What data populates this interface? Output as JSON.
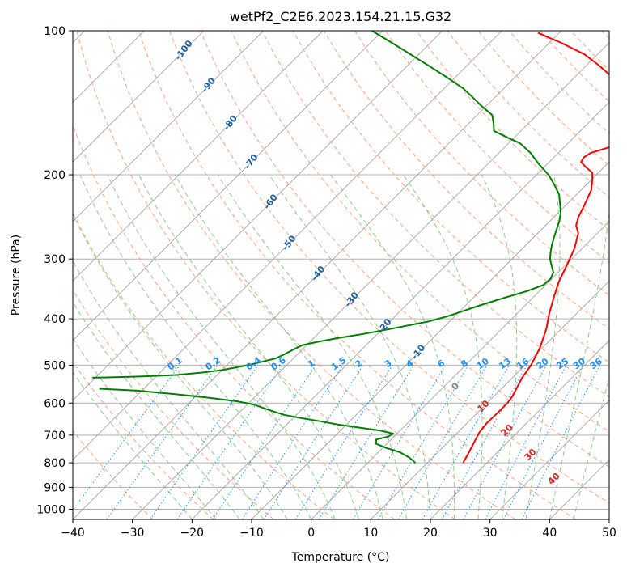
{
  "chart_data": {
    "type": "line",
    "title": "wetPf2_C2E6.2023.154.21.15.G32",
    "xlabel": "Temperature (°C)",
    "ylabel": "Pressure (hPa)",
    "x_ticks": [
      -40,
      -30,
      -20,
      -10,
      0,
      10,
      20,
      30,
      40,
      50
    ],
    "y_ticks": [
      100,
      200,
      300,
      400,
      500,
      600,
      700,
      800,
      900,
      1000
    ],
    "xlim": [
      -40,
      50
    ],
    "ylim": [
      1050,
      100
    ],
    "y_scale": "log",
    "skew": true,
    "grid": true,
    "series": [
      {
        "color": "#ff0000",
        "points": [
          [
            16,
            800
          ],
          [
            15.2,
            760
          ],
          [
            14.3,
            720
          ],
          [
            13.6,
            690
          ],
          [
            13.3,
            660
          ],
          [
            13.4,
            630
          ],
          [
            13.4,
            600
          ],
          [
            13.1,
            580
          ],
          [
            12.2,
            550
          ],
          [
            11.6,
            530
          ],
          [
            11.0,
            500
          ],
          [
            9.6,
            460
          ],
          [
            7.5,
            420
          ],
          [
            5.4,
            390
          ],
          [
            3.4,
            360
          ],
          [
            1.7,
            335
          ],
          [
            0.3,
            310
          ],
          [
            -1.3,
            285
          ],
          [
            -3.2,
            265
          ],
          [
            -4.9,
            255
          ],
          [
            -5.9,
            245
          ],
          [
            -7.0,
            230
          ],
          [
            -8.3,
            215
          ],
          [
            -9.8,
            205
          ],
          [
            -11.0,
            198
          ],
          [
            -13.3,
            192
          ],
          [
            -14.7,
            188
          ],
          [
            -15.0,
            184
          ],
          [
            -14.6,
            180
          ],
          [
            -11.9,
            174
          ],
          [
            -11.1,
            169
          ],
          [
            -12.2,
            163
          ],
          [
            -13.4,
            157
          ],
          [
            -14.8,
            151
          ],
          [
            -15.6,
            146
          ],
          [
            -16.6,
            140
          ],
          [
            -18.5,
            134
          ],
          [
            -21.4,
            129
          ],
          [
            -24.3,
            124
          ],
          [
            -28.0,
            118
          ],
          [
            -32.2,
            112
          ],
          [
            -38.0,
            106
          ],
          [
            -43.6,
            101
          ]
        ]
      },
      {
        "color": "#008000",
        "points": [
          [
            8,
            800
          ],
          [
            6.1,
            780
          ],
          [
            3.6,
            760
          ],
          [
            0.7,
            745
          ],
          [
            -1.8,
            730
          ],
          [
            -2.5,
            715
          ],
          [
            -1.0,
            705
          ],
          [
            -0.6,
            695
          ],
          [
            -3.3,
            685
          ],
          [
            -7.4,
            675
          ],
          [
            -11.5,
            665
          ],
          [
            -14.9,
            655
          ],
          [
            -18.7,
            645
          ],
          [
            -22.1,
            635
          ],
          [
            -24.4,
            625
          ],
          [
            -26.6,
            615
          ],
          [
            -28.7,
            605
          ],
          [
            -32.2,
            595
          ],
          [
            -37.5,
            585
          ],
          [
            -43.8,
            575
          ],
          [
            -51.0,
            565
          ],
          [
            -57.5,
            560
          ]
        ],
        "upper_points": [
          [
            -60.5,
            531
          ],
          [
            -52.6,
            528
          ],
          [
            -46.9,
            524
          ],
          [
            -42.9,
            518
          ],
          [
            -40.1,
            512
          ],
          [
            -38.0,
            505
          ],
          [
            -36.0,
            498
          ],
          [
            -34.3,
            490
          ],
          [
            -33.0,
            484
          ],
          [
            -32.3,
            476
          ],
          [
            -31.5,
            464
          ],
          [
            -30.7,
            454
          ],
          [
            -28.5,
            446
          ],
          [
            -25.6,
            438
          ],
          [
            -22.3,
            430
          ],
          [
            -19.0,
            421
          ],
          [
            -16.3,
            413
          ],
          [
            -13.5,
            405
          ],
          [
            -11.2,
            395
          ],
          [
            -9.6,
            386
          ],
          [
            -7.6,
            375
          ],
          [
            -4.9,
            362
          ],
          [
            -2.1,
            350
          ],
          [
            -0.4,
            340
          ],
          [
            -0.2,
            330
          ],
          [
            -0.8,
            320
          ],
          [
            -2.2,
            310
          ],
          [
            -3.6,
            300
          ],
          [
            -4.7,
            290
          ],
          [
            -5.7,
            280
          ],
          [
            -6.6,
            270
          ],
          [
            -7.5,
            260
          ],
          [
            -8.4,
            250
          ],
          [
            -9.6,
            240
          ],
          [
            -11.2,
            230
          ],
          [
            -12.9,
            220
          ],
          [
            -15.3,
            210
          ],
          [
            -18.0,
            200
          ],
          [
            -21.4,
            190
          ],
          [
            -24.7,
            180
          ],
          [
            -28.0,
            172
          ],
          [
            -31.9,
            166
          ],
          [
            -34.5,
            162
          ],
          [
            -35.9,
            156
          ],
          [
            -37.5,
            150
          ],
          [
            -40.6,
            144
          ],
          [
            -43.6,
            138
          ],
          [
            -46.8,
            132
          ],
          [
            -50.8,
            126
          ],
          [
            -55.9,
            119
          ],
          [
            -60.6,
            113
          ],
          [
            -66.4,
            106
          ],
          [
            -71.8,
            100
          ]
        ]
      }
    ],
    "isotherm_labels": [
      {
        "text": "-100",
        "T": -100,
        "p": 110
      },
      {
        "text": "-90",
        "T": -90,
        "p": 130
      },
      {
        "text": "-80",
        "T": -80,
        "p": 156
      },
      {
        "text": "-70",
        "T": -70,
        "p": 188
      },
      {
        "text": "-60",
        "T": -60,
        "p": 228
      },
      {
        "text": "-50",
        "T": -50,
        "p": 278
      },
      {
        "text": "-40",
        "T": -40,
        "p": 322
      },
      {
        "text": "-30",
        "T": -30,
        "p": 365
      },
      {
        "text": "-20",
        "T": -20,
        "p": 415
      },
      {
        "text": "-10",
        "T": -10,
        "p": 470
      }
    ],
    "mixing_ratio_labels": [
      "0.1",
      "0.2",
      "0.4",
      "0.6",
      "1",
      "1.5",
      "2",
      "3",
      "4",
      "6",
      "8",
      "10",
      "13",
      "16",
      "20",
      "25",
      "30",
      "36"
    ],
    "moist_adiabat_labels": [
      "0",
      "10",
      "20",
      "30",
      "40"
    ],
    "colors": {
      "temperature": "#ff0000",
      "dewpoint": "#008000",
      "isotherm_label": "#1f5f9e",
      "mixing_ratio": "#1e90ff",
      "moist_label_0": "#808080",
      "moist_label": "#d62728",
      "dry_adiabat": "#ffa07a",
      "moist_adiabat": "#90c890",
      "isotherm": "#9a9a9a"
    }
  }
}
